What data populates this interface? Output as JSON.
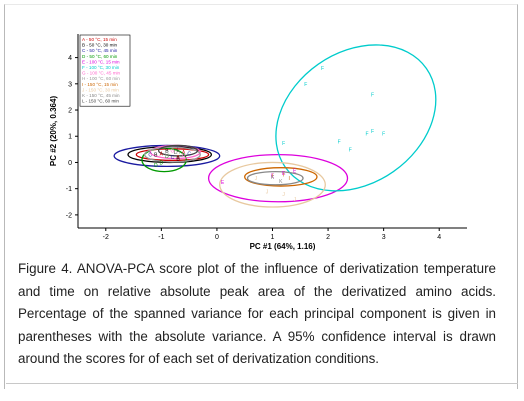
{
  "chart_data": {
    "type": "scatter",
    "xlabel": "PC #1 (64%, 1.16)",
    "ylabel": "PC #2 (20%, 0.364)",
    "xlim": [
      -2.5,
      4.5
    ],
    "ylim": [
      -2.5,
      4.9
    ],
    "xticks": [
      -2,
      -1,
      0,
      1,
      2,
      3,
      4
    ],
    "yticks": [
      -2,
      -1,
      0,
      1,
      2,
      3,
      4
    ],
    "legend_position": "top-left",
    "series": [
      {
        "name": "A - 50 °C, 15 min",
        "color": "#cc0000",
        "marker": "A",
        "ellipse": {
          "cx": -0.8,
          "cy": 0.3,
          "rx": 0.65,
          "ry": 0.22,
          "angle": 0
        },
        "points": [
          [
            -1.0,
            0.35
          ],
          [
            -0.7,
            0.2
          ],
          [
            -0.6,
            0.4
          ]
        ]
      },
      {
        "name": "B - 50 °C, 30 min",
        "color": "#000000",
        "marker": "B",
        "ellipse": {
          "cx": -0.85,
          "cy": 0.3,
          "rx": 0.75,
          "ry": 0.3,
          "angle": 0
        },
        "points": [
          [
            -1.1,
            0.3
          ],
          [
            -0.9,
            0.45
          ],
          [
            -0.7,
            0.15
          ]
        ]
      },
      {
        "name": "C - 50 °C, 45 min",
        "color": "#1a1aa0",
        "marker": "C",
        "ellipse": {
          "cx": -0.9,
          "cy": 0.25,
          "rx": 0.95,
          "ry": 0.4,
          "angle": 0
        },
        "points": [
          [
            -1.2,
            0.3
          ],
          [
            -0.8,
            0.2
          ],
          [
            -0.5,
            0.35
          ]
        ]
      },
      {
        "name": "D - 50 °C, 60 min",
        "color": "#009900",
        "marker": "D",
        "ellipse": {
          "cx": -0.95,
          "cy": 0.1,
          "rx": 0.4,
          "ry": 0.45,
          "angle": 0
        },
        "points": [
          [
            -1.0,
            0.0
          ],
          [
            -0.9,
            0.25
          ],
          [
            -1.1,
            -0.1
          ]
        ]
      },
      {
        "name": "E - 100 °C, 15 min",
        "color": "#dd00dd",
        "marker": "E",
        "ellipse": {
          "cx": 1.1,
          "cy": -0.6,
          "rx": 1.25,
          "ry": 0.9,
          "angle": 0
        },
        "points": [
          [
            0.1,
            -0.75
          ],
          [
            1.2,
            -0.4
          ],
          [
            1.4,
            -0.3
          ],
          [
            1.0,
            -0.5
          ]
        ]
      },
      {
        "name": "F - 100 °C, 30 min",
        "color": "#00cccc",
        "marker": "F",
        "ellipse": {
          "cx": 2.5,
          "cy": 1.7,
          "rx": 1.55,
          "ry": 2.5,
          "angle": -35
        },
        "points": [
          [
            1.6,
            3.0
          ],
          [
            1.9,
            3.6
          ],
          [
            2.2,
            0.8
          ],
          [
            2.4,
            0.5
          ],
          [
            2.7,
            1.1
          ],
          [
            2.8,
            1.2
          ],
          [
            3.0,
            1.1
          ],
          [
            1.2,
            0.75
          ],
          [
            2.8,
            2.6
          ]
        ]
      },
      {
        "name": "G - 100 °C, 45 min",
        "color": "#ff66cc",
        "marker": "G",
        "ellipse": {
          "cx": -0.75,
          "cy": 0.4,
          "rx": 0.45,
          "ry": 0.25,
          "angle": 0
        },
        "points": [
          [
            -0.8,
            0.45
          ],
          [
            -0.6,
            0.3
          ]
        ]
      },
      {
        "name": "H - 100 °C, 60 min",
        "color": "#999999",
        "marker": "H",
        "ellipse": {
          "cx": -0.8,
          "cy": 0.3,
          "rx": 0.5,
          "ry": 0.28,
          "angle": 0
        },
        "points": [
          [
            -0.9,
            0.3
          ],
          [
            -0.7,
            0.4
          ]
        ]
      },
      {
        "name": "I - 150 °C, 15 min",
        "color": "#cc6600",
        "marker": "I",
        "ellipse": {
          "cx": 1.15,
          "cy": -0.55,
          "rx": 0.65,
          "ry": 0.35,
          "angle": 0
        },
        "points": [
          [
            1.0,
            -0.5
          ],
          [
            1.2,
            -0.45
          ],
          [
            1.3,
            -0.6
          ]
        ]
      },
      {
        "name": "J - 150 °C, 30 min",
        "color": "#e8c9a0",
        "marker": "J",
        "ellipse": {
          "cx": 1.0,
          "cy": -0.85,
          "rx": 0.95,
          "ry": 0.85,
          "angle": 0
        },
        "points": [
          [
            0.7,
            -0.6
          ],
          [
            1.2,
            -1.2
          ],
          [
            1.4,
            -1.4
          ],
          [
            0.9,
            -1.1
          ]
        ]
      },
      {
        "name": "K - 150 °C, 45 min",
        "color": "#888888",
        "marker": "K",
        "ellipse": {
          "cx": 1.05,
          "cy": -0.6,
          "rx": 0.5,
          "ry": 0.25,
          "angle": 0
        },
        "points": [
          [
            1.0,
            -0.55
          ],
          [
            1.15,
            -0.7
          ]
        ]
      },
      {
        "name": "L - 150 °C, 60 min",
        "color": "#444444",
        "marker": "L",
        "ellipse": {
          "cx": -0.7,
          "cy": 0.45,
          "rx": 0.35,
          "ry": 0.2,
          "angle": 0
        },
        "points": [
          [
            -0.7,
            0.5
          ],
          [
            -0.75,
            0.4
          ]
        ]
      }
    ]
  },
  "caption": "Figure 4.   ANOVA-PCA score plot of the influence of derivatization temperature and time on relative absolute peak area of the derivatized amino acids.  Percentage of the spanned variance for each principal component is given in parentheses with the absolute variance.  A 95% confidence interval is drawn around the scores for of each set of derivatization conditions."
}
